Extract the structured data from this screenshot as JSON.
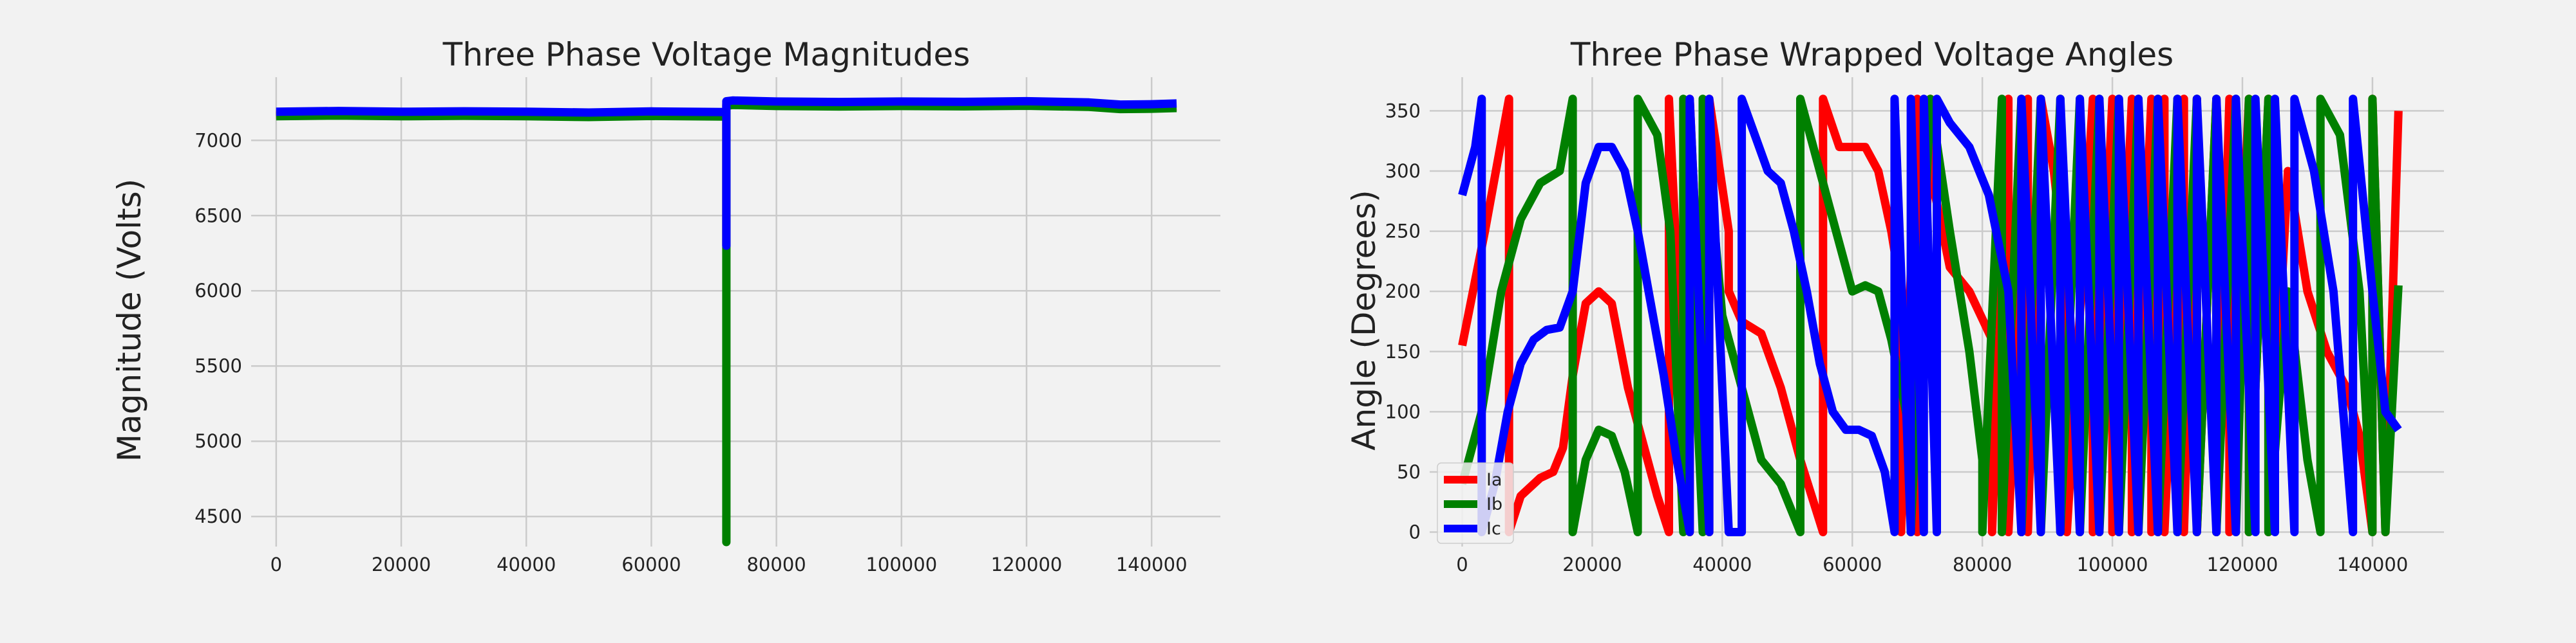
{
  "colors": {
    "background": "#f2f2f2",
    "grid": "#cbcbcb",
    "Ia": "#ff0000",
    "Ib": "#008000",
    "Ic": "#0000ff"
  },
  "chart_data": [
    {
      "type": "line",
      "title": "Three Phase Voltage Magnitudes",
      "xlabel": "",
      "ylabel": "Magnitude (Volts)",
      "xlim": [
        -4000,
        151000
      ],
      "ylim": [
        4300,
        7420
      ],
      "xticks": [
        0,
        20000,
        40000,
        60000,
        80000,
        100000,
        120000,
        140000
      ],
      "yticks": [
        4500,
        5000,
        5500,
        6000,
        6500,
        7000
      ],
      "grid": true,
      "legend": null,
      "series": [
        {
          "color": "#ff0000",
          "x": [
            0,
            10000,
            20000,
            30000,
            40000,
            50000,
            60000,
            71500,
            72000,
            72000,
            72000,
            73000,
            80000,
            90000,
            100000,
            110000,
            120000,
            130000,
            135000,
            140000,
            144000
          ],
          "y": [
            7170,
            7175,
            7172,
            7175,
            7172,
            7170,
            7173,
            7168,
            7165,
            6300,
            7240,
            7245,
            7238,
            7235,
            7238,
            7236,
            7240,
            7232,
            7218,
            7220,
            7225
          ]
        },
        {
          "color": "#008000",
          "x": [
            0,
            10000,
            20000,
            30000,
            40000,
            50000,
            60000,
            71500,
            72000,
            72000,
            72000,
            73000,
            80000,
            90000,
            100000,
            110000,
            120000,
            130000,
            135000,
            140000,
            144000
          ],
          "y": [
            7160,
            7165,
            7160,
            7163,
            7160,
            7155,
            7162,
            7158,
            7155,
            4330,
            7230,
            7235,
            7228,
            7225,
            7228,
            7226,
            7230,
            7222,
            7208,
            7210,
            7215
          ]
        },
        {
          "color": "#0000ff",
          "x": [
            0,
            10000,
            20000,
            30000,
            40000,
            50000,
            60000,
            71500,
            72000,
            72000,
            72000,
            73000,
            80000,
            90000,
            100000,
            110000,
            120000,
            130000,
            135000,
            140000,
            144000
          ],
          "y": [
            7190,
            7195,
            7190,
            7193,
            7190,
            7185,
            7192,
            7188,
            7185,
            6300,
            7260,
            7265,
            7258,
            7255,
            7258,
            7256,
            7260,
            7252,
            7238,
            7240,
            7245
          ]
        }
      ]
    },
    {
      "type": "line",
      "title": "Three Phase Wrapped Voltage Angles",
      "xlabel": "",
      "ylabel": "Angle (Degrees)",
      "xlim": [
        -5000,
        151000
      ],
      "ylim": [
        -12,
        378
      ],
      "xticks": [
        0,
        20000,
        40000,
        60000,
        80000,
        100000,
        120000,
        140000
      ],
      "yticks": [
        0,
        50,
        100,
        150,
        200,
        250,
        300,
        350
      ],
      "grid": true,
      "legend": "lower-left",
      "series": [
        {
          "name": "Ia",
          "color": "#ff0000",
          "x": [
            0,
            3500,
            7200,
            7200,
            9000,
            12000,
            14000,
            15500,
            17000,
            19000,
            21000,
            23000,
            25500,
            28000,
            30000,
            31800,
            31800,
            35000,
            35000,
            38000,
            38000,
            41000,
            41000,
            43000,
            46000,
            49000,
            52000,
            55500,
            55500,
            58000,
            60000,
            62000,
            64000,
            66000,
            67500,
            67500,
            70000,
            70000,
            72000,
            72000,
            75000,
            78000,
            81500,
            81500,
            84000,
            84000,
            87000,
            87000,
            89000,
            91000,
            93000,
            93000,
            97000,
            97000,
            100000,
            100000,
            103000,
            103000,
            106000,
            106000,
            108000,
            108000,
            111000,
            111000,
            113000,
            113000,
            116000,
            116000,
            118000,
            118000,
            121000,
            121000,
            124000,
            124000,
            127000,
            130000,
            133000,
            136000,
            138000,
            140000,
            140000,
            142000,
            144000
          ],
          "y": [
            155,
            250,
            360,
            0,
            30,
            45,
            50,
            70,
            130,
            190,
            200,
            190,
            120,
            70,
            30,
            0,
            360,
            0,
            360,
            0,
            360,
            250,
            200,
            175,
            165,
            120,
            60,
            0,
            360,
            320,
            320,
            320,
            300,
            250,
            200,
            0,
            360,
            0,
            360,
            300,
            220,
            200,
            160,
            0,
            360,
            0,
            360,
            0,
            360,
            300,
            200,
            0,
            360,
            0,
            360,
            0,
            360,
            0,
            360,
            0,
            360,
            0,
            360,
            0,
            360,
            0,
            360,
            0,
            360,
            0,
            360,
            0,
            360,
            0,
            300,
            200,
            150,
            120,
            80,
            0,
            360,
            0,
            350
          ]
        },
        {
          "name": "Ib",
          "color": "#008000",
          "x": [
            0,
            3000,
            6000,
            9000,
            12000,
            15000,
            17000,
            17000,
            19000,
            21000,
            23000,
            25000,
            27000,
            27000,
            30000,
            32000,
            34000,
            34000,
            37000,
            37000,
            40000,
            43000,
            46000,
            49000,
            52000,
            52000,
            55000,
            57500,
            60000,
            62000,
            64000,
            66000,
            69000,
            69000,
            72000,
            75000,
            78000,
            80000,
            80000,
            83000,
            83000,
            86000,
            86000,
            89000,
            89000,
            92000,
            92000,
            95000,
            95000,
            98000,
            98000,
            101000,
            101000,
            104000,
            104000,
            107000,
            107000,
            110000,
            110000,
            113000,
            113000,
            116000,
            116000,
            119000,
            119000,
            121000,
            121000,
            124000,
            124000,
            127000,
            130000,
            132000,
            132000,
            135000,
            138000,
            140000,
            140000,
            142000,
            144000
          ],
          "y": [
            40,
            100,
            200,
            260,
            290,
            300,
            360,
            0,
            60,
            85,
            80,
            50,
            0,
            360,
            330,
            250,
            0,
            360,
            0,
            360,
            180,
            120,
            60,
            40,
            0,
            360,
            300,
            250,
            200,
            205,
            200,
            160,
            80,
            0,
            360,
            250,
            150,
            60,
            0,
            360,
            0,
            360,
            0,
            360,
            0,
            360,
            0,
            360,
            0,
            360,
            0,
            360,
            0,
            360,
            0,
            360,
            0,
            360,
            0,
            360,
            0,
            360,
            0,
            360,
            0,
            360,
            0,
            360,
            0,
            200,
            60,
            0,
            360,
            330,
            200,
            0,
            360,
            0,
            205
          ]
        },
        {
          "name": "Ic",
          "color": "#0000ff",
          "x": [
            0,
            2000,
            3000,
            3000,
            5000,
            7000,
            9000,
            11000,
            13000,
            15000,
            17000,
            19000,
            21000,
            23000,
            25000,
            27000,
            29000,
            31000,
            33000,
            35000,
            35000,
            38000,
            38000,
            41000,
            43000,
            43000,
            45000,
            47000,
            49000,
            51000,
            53000,
            55000,
            57000,
            59000,
            61000,
            63000,
            65000,
            66500,
            66500,
            69000,
            69000,
            71000,
            71000,
            73000,
            73000,
            75000,
            78000,
            81000,
            84000,
            86000,
            86000,
            89000,
            89000,
            92000,
            92000,
            95000,
            95000,
            98000,
            98000,
            101000,
            101000,
            104000,
            104000,
            107000,
            107000,
            110000,
            110000,
            113000,
            113000,
            116000,
            116000,
            119000,
            119000,
            122000,
            122000,
            125000,
            125000,
            128000,
            128000,
            131000,
            134000,
            137000,
            137000,
            140000,
            142000,
            144000
          ],
          "y": [
            280,
            320,
            360,
            0,
            40,
            100,
            140,
            160,
            168,
            170,
            200,
            290,
            320,
            320,
            300,
            250,
            190,
            130,
            60,
            0,
            360,
            0,
            360,
            0,
            0,
            360,
            330,
            300,
            290,
            250,
            200,
            140,
            100,
            85,
            85,
            80,
            50,
            0,
            360,
            0,
            360,
            0,
            360,
            0,
            360,
            340,
            320,
            280,
            200,
            0,
            360,
            0,
            360,
            0,
            360,
            0,
            360,
            0,
            360,
            0,
            360,
            0,
            360,
            0,
            360,
            0,
            360,
            0,
            360,
            0,
            360,
            0,
            360,
            0,
            360,
            0,
            360,
            0,
            360,
            300,
            200,
            0,
            360,
            200,
            100,
            85
          ]
        }
      ]
    }
  ]
}
